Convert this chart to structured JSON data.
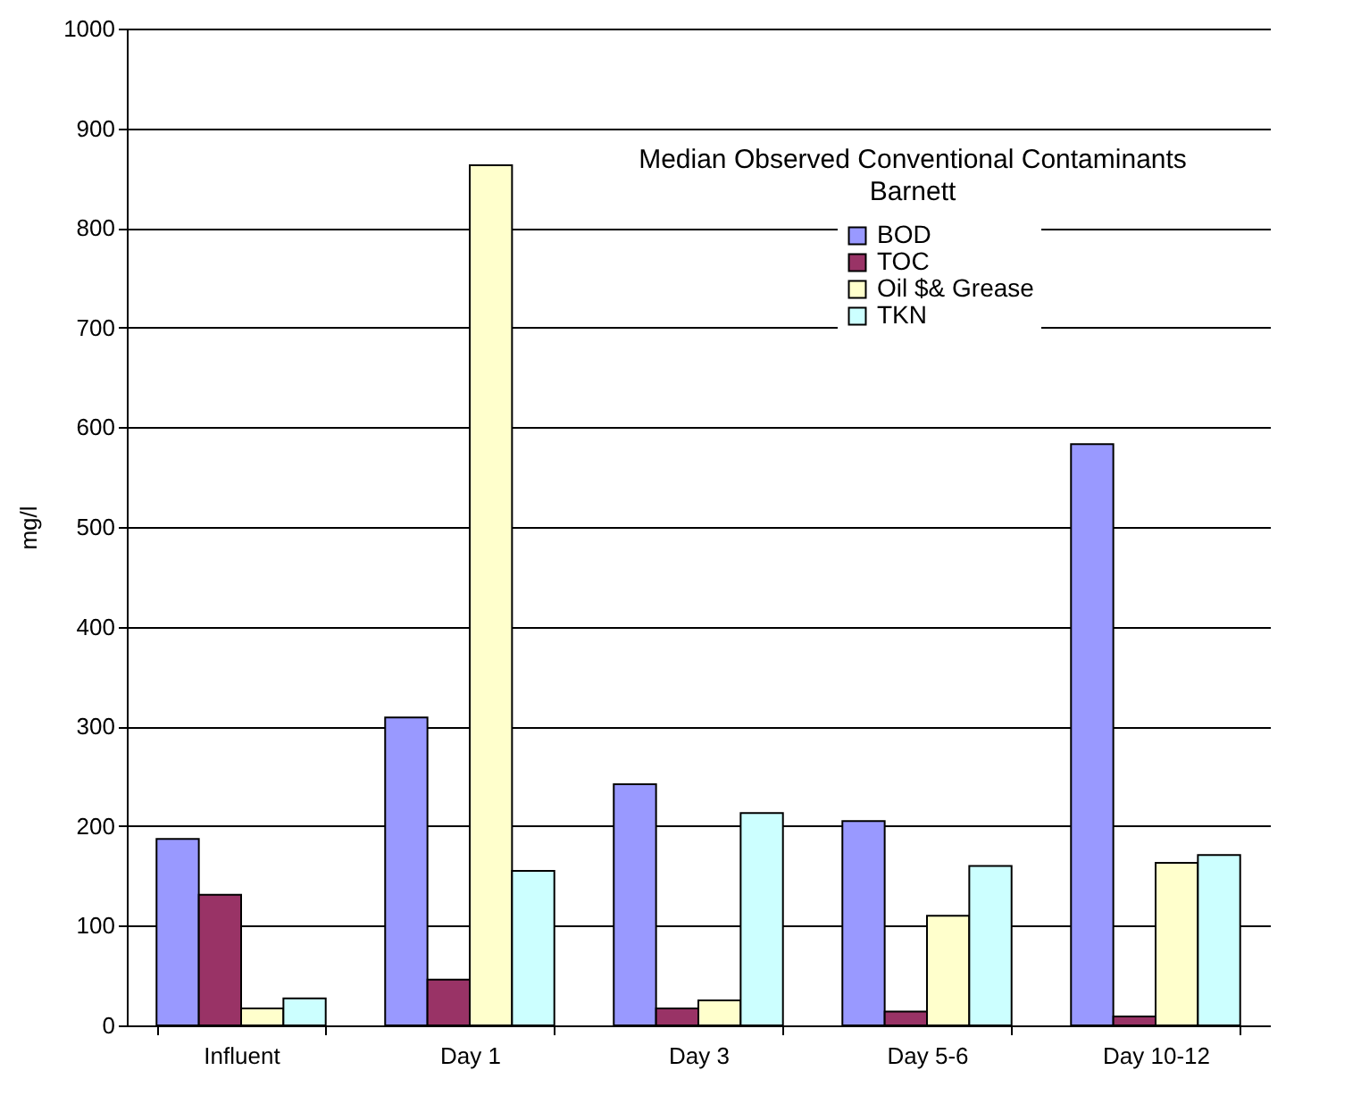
{
  "chart_data": {
    "type": "bar",
    "title": "Median Observed Conventional Contaminants",
    "subtitle": "Barnett",
    "ylabel": "mg/l",
    "categories": [
      "Influent",
      "Day 1",
      "Day 3",
      "Day 5-6",
      "Day 10-12"
    ],
    "series": [
      {
        "name": "BOD",
        "color": "#9999ff",
        "values": [
          187,
          309,
          242,
          205,
          583
        ]
      },
      {
        "name": "TOC",
        "color": "#993366",
        "values": [
          131,
          46,
          17,
          14,
          9
        ]
      },
      {
        "name": "Oil $& Grease",
        "color": "#ffffcc",
        "values": [
          17,
          863,
          25,
          110,
          163
        ]
      },
      {
        "name": "TKN",
        "color": "#ccffff",
        "values": [
          27,
          155,
          213,
          160,
          171
        ]
      }
    ],
    "ylim": [
      0,
      1000
    ],
    "yticks": [
      0,
      100,
      200,
      300,
      400,
      500,
      600,
      700,
      800,
      900,
      1000
    ],
    "grid": "y",
    "legend": "top right"
  }
}
